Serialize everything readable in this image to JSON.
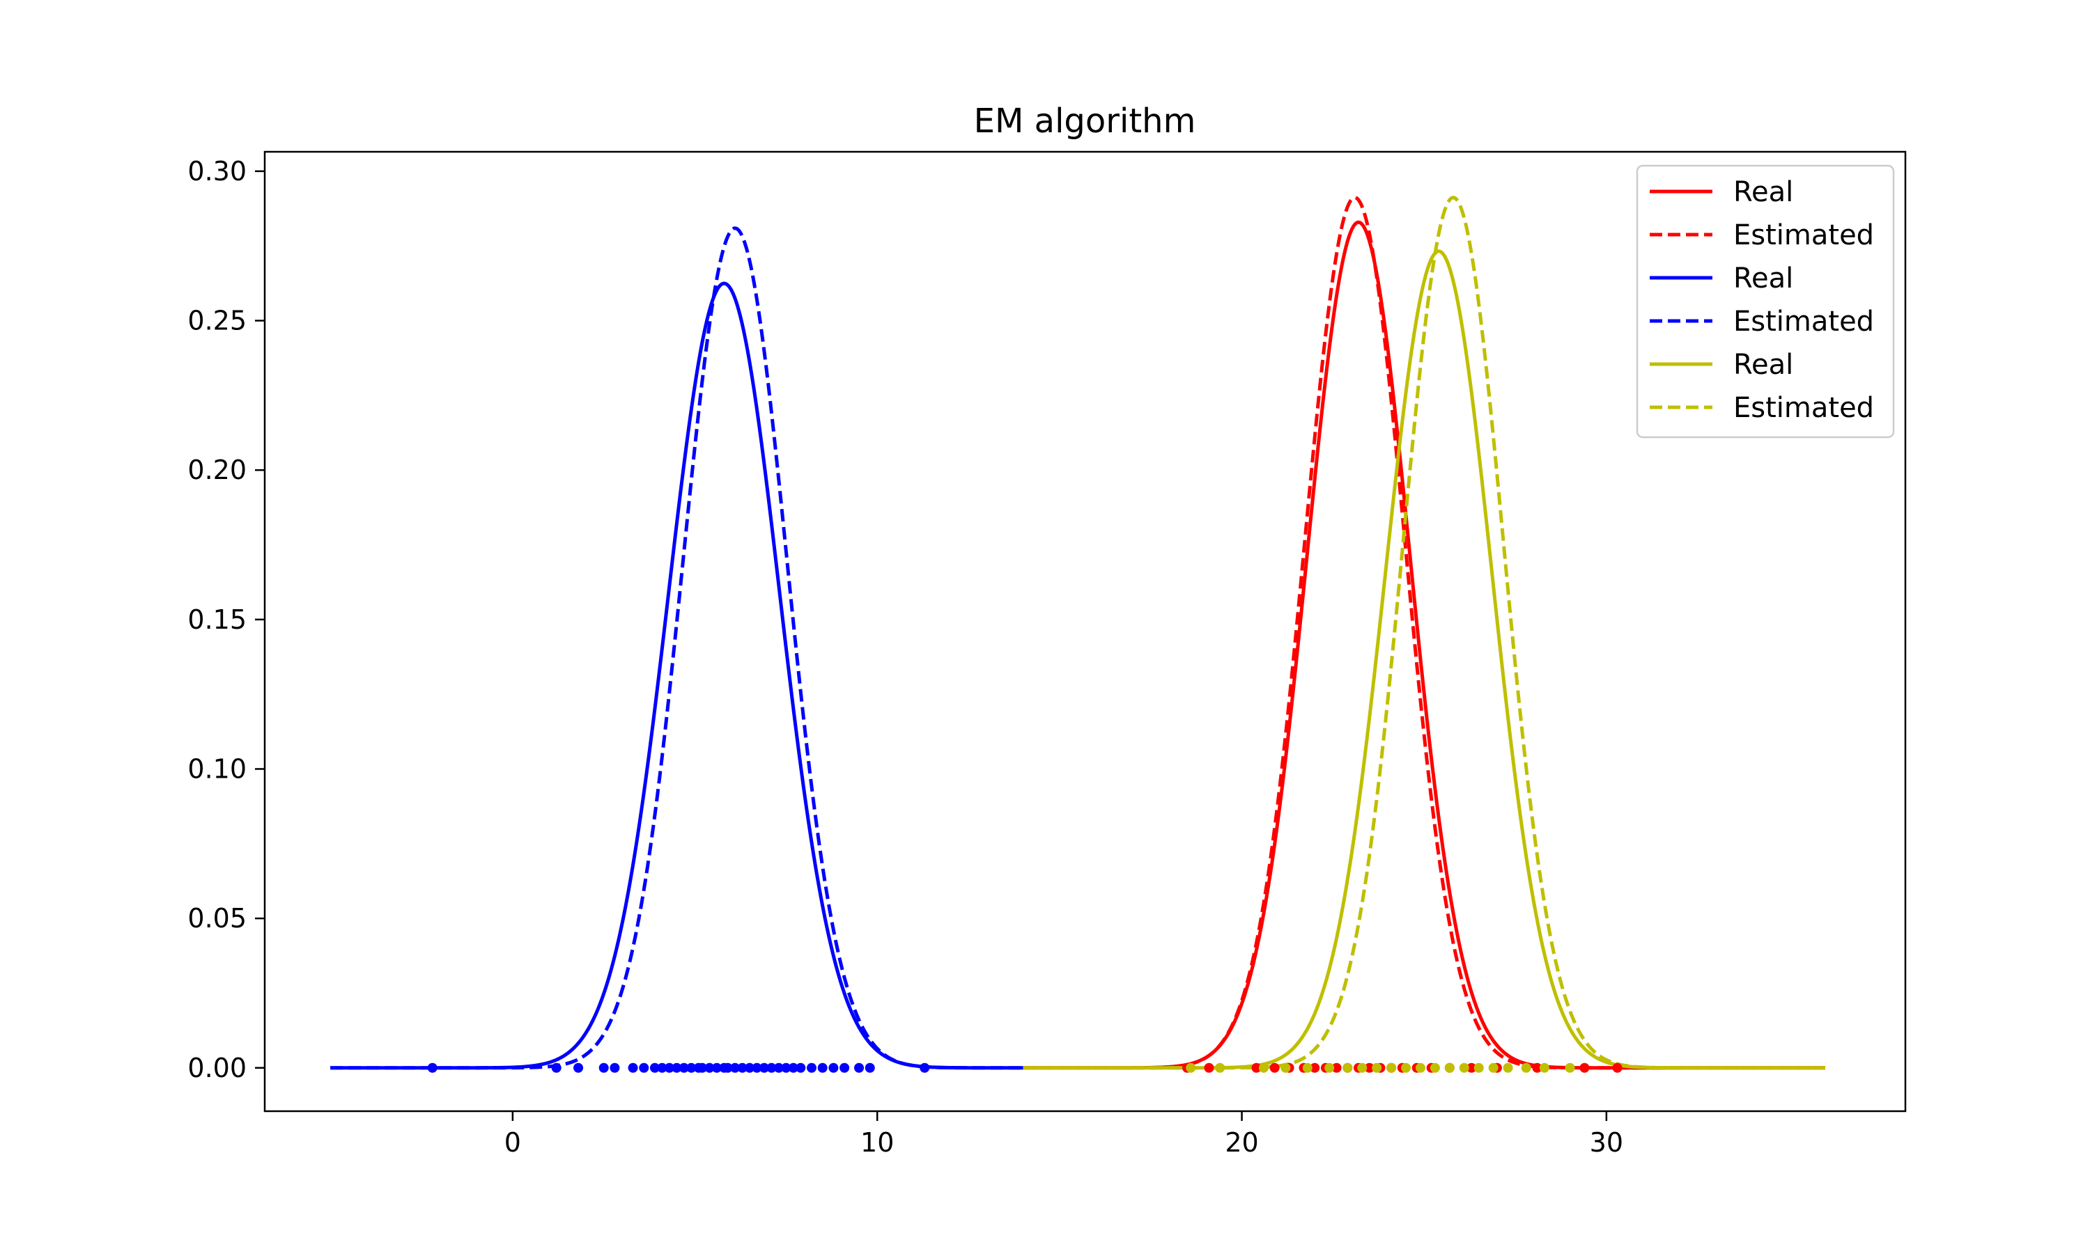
{
  "chart_data": {
    "type": "line",
    "title": "EM algorithm",
    "xlabel": "",
    "ylabel": "",
    "xlim": [
      -6.8,
      38.2
    ],
    "ylim": [
      -0.0145,
      0.3065
    ],
    "x_ticks": [
      0,
      10,
      20,
      30
    ],
    "y_ticks": [
      0.0,
      0.05,
      0.1,
      0.15,
      0.2,
      0.25,
      0.3
    ],
    "y_tick_labels": [
      "0.00",
      "0.05",
      "0.10",
      "0.15",
      "0.20",
      "0.25",
      "0.30"
    ],
    "grid": false,
    "legend_position": "upper right",
    "legend": [
      {
        "label": "Real",
        "color": "#ff0000",
        "style": "solid"
      },
      {
        "label": "Estimated",
        "color": "#ff0000",
        "style": "dashed"
      },
      {
        "label": "Real",
        "color": "#0000ff",
        "style": "solid"
      },
      {
        "label": "Estimated",
        "color": "#0000ff",
        "style": "dashed"
      },
      {
        "label": "Real",
        "color": "#bfbf00",
        "style": "solid"
      },
      {
        "label": "Estimated",
        "color": "#bfbf00",
        "style": "dashed"
      }
    ],
    "series": [
      {
        "component": "blue",
        "kind": "real",
        "color": "#0000ff",
        "style": "solid",
        "mean": 5.8,
        "sd": 1.52,
        "range": [
          -5,
          14
        ]
      },
      {
        "component": "blue",
        "kind": "estimated",
        "color": "#0000ff",
        "style": "dashed",
        "mean": 6.1,
        "sd": 1.42,
        "range": [
          -5,
          14
        ]
      },
      {
        "component": "red",
        "kind": "real",
        "color": "#ff0000",
        "style": "solid",
        "mean": 23.2,
        "sd": 1.41,
        "range": [
          14,
          36
        ]
      },
      {
        "component": "red",
        "kind": "estimated",
        "color": "#ff0000",
        "style": "dashed",
        "mean": 23.1,
        "sd": 1.37,
        "range": [
          14,
          36
        ]
      },
      {
        "component": "yellow",
        "kind": "real",
        "color": "#bfbf00",
        "style": "solid",
        "mean": 25.4,
        "sd": 1.46,
        "range": [
          14,
          36
        ]
      },
      {
        "component": "yellow",
        "kind": "estimated",
        "color": "#bfbf00",
        "style": "dashed",
        "mean": 25.8,
        "sd": 1.37,
        "range": [
          14,
          36
        ]
      }
    ],
    "samples": [
      {
        "color": "#0000ff",
        "x": [
          -2.2,
          1.2,
          1.8,
          2.5,
          2.8,
          3.3,
          3.6,
          3.9,
          4.1,
          4.3,
          4.5,
          4.7,
          4.9,
          5.1,
          5.2,
          5.4,
          5.6,
          5.8,
          5.9,
          6.1,
          6.3,
          6.5,
          6.7,
          6.9,
          7.1,
          7.3,
          7.5,
          7.7,
          7.9,
          8.2,
          8.5,
          8.8,
          9.1,
          9.5,
          9.8,
          11.3
        ]
      },
      {
        "color": "#ff0000",
        "x": [
          18.5,
          19.1,
          20.4,
          20.9,
          21.3,
          21.7,
          22.0,
          22.3,
          22.6,
          22.9,
          23.2,
          23.5,
          23.8,
          24.1,
          24.4,
          24.8,
          25.2,
          25.7,
          26.3,
          27.0,
          28.1,
          29.4,
          30.3
        ]
      },
      {
        "color": "#bfbf00",
        "x": [
          18.6,
          19.4,
          20.6,
          21.2,
          21.8,
          22.4,
          22.9,
          23.3,
          23.7,
          24.1,
          24.5,
          24.9,
          25.3,
          25.7,
          26.1,
          26.5,
          26.9,
          27.3,
          27.8,
          28.3,
          29.0
        ]
      }
    ]
  }
}
